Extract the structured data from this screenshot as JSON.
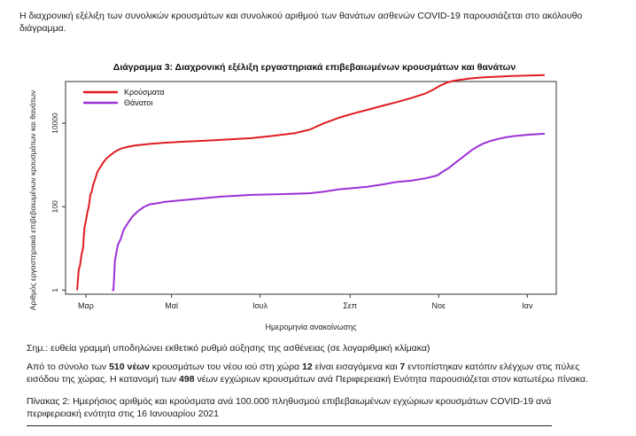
{
  "intro_text": "Η διαχρονική εξέλιξη των συνολικών κρουσμάτων και συνολικού αριθμού των θανάτων ασθενών COVID-19 παρουσιάζεται στο ακόλουθο διάγραμμα.",
  "chart_data": {
    "type": "line",
    "title": "Διάγραμμα 3: Διαχρονική εξέλιξη εργαστηριακά επιβεβαιωμένων κρουσμάτων και θανάτων",
    "xlabel": "Ημερομηνία ανακοίνωσης",
    "ylabel": "Αριθμός εργαστηριακά επιβεβαιωμένων κρουσμάτων και θανάτων",
    "y_scale": "log",
    "ylim": [
      0.8,
      100000
    ],
    "xlim": [
      -8,
      330
    ],
    "x_unit_note": "days since 2020-02-26",
    "x_ticks": [
      {
        "pos": 6,
        "label": "Μαρ"
      },
      {
        "pos": 65,
        "label": "Μαϊ"
      },
      {
        "pos": 126,
        "label": "Ιουλ"
      },
      {
        "pos": 188,
        "label": "Σεπ"
      },
      {
        "pos": 249,
        "label": "Νοε"
      },
      {
        "pos": 310,
        "label": "Ιαν"
      }
    ],
    "y_ticks": [
      {
        "value": 1,
        "label": "1"
      },
      {
        "value": 100,
        "label": "100"
      },
      {
        "value": 10000,
        "label": "10000"
      }
    ],
    "legend_position": "top-left",
    "series": [
      {
        "name": "Κρούσματα",
        "color": "#e11b22",
        "x": [
          0,
          1,
          2,
          3,
          4,
          5,
          6,
          7,
          8,
          9,
          10,
          11,
          12,
          14,
          16,
          18,
          20,
          23,
          26,
          30,
          35,
          40,
          50,
          60,
          75,
          90,
          105,
          120,
          135,
          150,
          160,
          165,
          170,
          180,
          190,
          200,
          210,
          220,
          230,
          240,
          245,
          250,
          255,
          260,
          270,
          280,
          290,
          300,
          310,
          322
        ],
        "y": [
          1,
          3,
          4,
          7,
          10,
          31,
          45,
          73,
          99,
          190,
          228,
          331,
          418,
          695,
          892,
          1156,
          1415,
          1735,
          2081,
          2470,
          2736,
          2940,
          3200,
          3400,
          3650,
          3850,
          4100,
          4400,
          5000,
          5800,
          7000,
          8400,
          10000,
          13500,
          17000,
          21000,
          26000,
          32000,
          40000,
          52000,
          63000,
          80000,
          95000,
          105000,
          118000,
          126000,
          131000,
          136000,
          139000,
          142000
        ]
      },
      {
        "name": "Θάνατοι",
        "color": "#9b30d6",
        "x": [
          24,
          25,
          26,
          27,
          28,
          30,
          32,
          35,
          38,
          42,
          46,
          50,
          55,
          60,
          70,
          80,
          100,
          120,
          140,
          150,
          160,
          170,
          180,
          190,
          200,
          210,
          220,
          230,
          240,
          248,
          252,
          256,
          260,
          264,
          268,
          272,
          276,
          280,
          285,
          290,
          295,
          300,
          310,
          322
        ],
        "y": [
          1,
          1,
          5,
          8,
          12,
          17,
          28,
          41,
          58,
          79,
          99,
          114,
          121,
          130,
          141,
          151,
          175,
          192,
          200,
          205,
          210,
          230,
          260,
          280,
          300,
          340,
          390,
          420,
          480,
          560,
          700,
          850,
          1100,
          1400,
          1800,
          2300,
          2800,
          3300,
          3800,
          4200,
          4600,
          4900,
          5300,
          5600
        ]
      }
    ]
  },
  "note_text": "Σημ.: ευθεία γραμμή υποδηλώνει εκθετικό ρυθμό αύξησης της ασθένειας (σε λογαριθμική κλίμακα)",
  "para": {
    "t1": "Από το σύνολο των ",
    "b1": "510 νέων",
    "t2": " κρουσμάτων του νέου ιού στη χώρα ",
    "b2": "12",
    "t3": " είναι εισαγόμενα και ",
    "b3": "7",
    "t4": " εντοπίστηκαν κατόπιν ελέγχων στις πύλες εισόδου της χώρας. Η κατανομή των ",
    "b4": "498",
    "t5": " νέων εγχώριων κρουσμάτων ανά Περιφερειακή Ενότητα παρουσιάζεται στον κατωτέρω πίνακα."
  },
  "caption_text": "Πίνακας 2: Ημερήσιος αριθμός και κρούσματα ανά 100.000 πληθυσμού επιβεβαιωμένων εγχώριων κρουσμάτων COVID-19 ανά περιφερειακή ενότητα στις 16 Ιανουαρίου 2021"
}
